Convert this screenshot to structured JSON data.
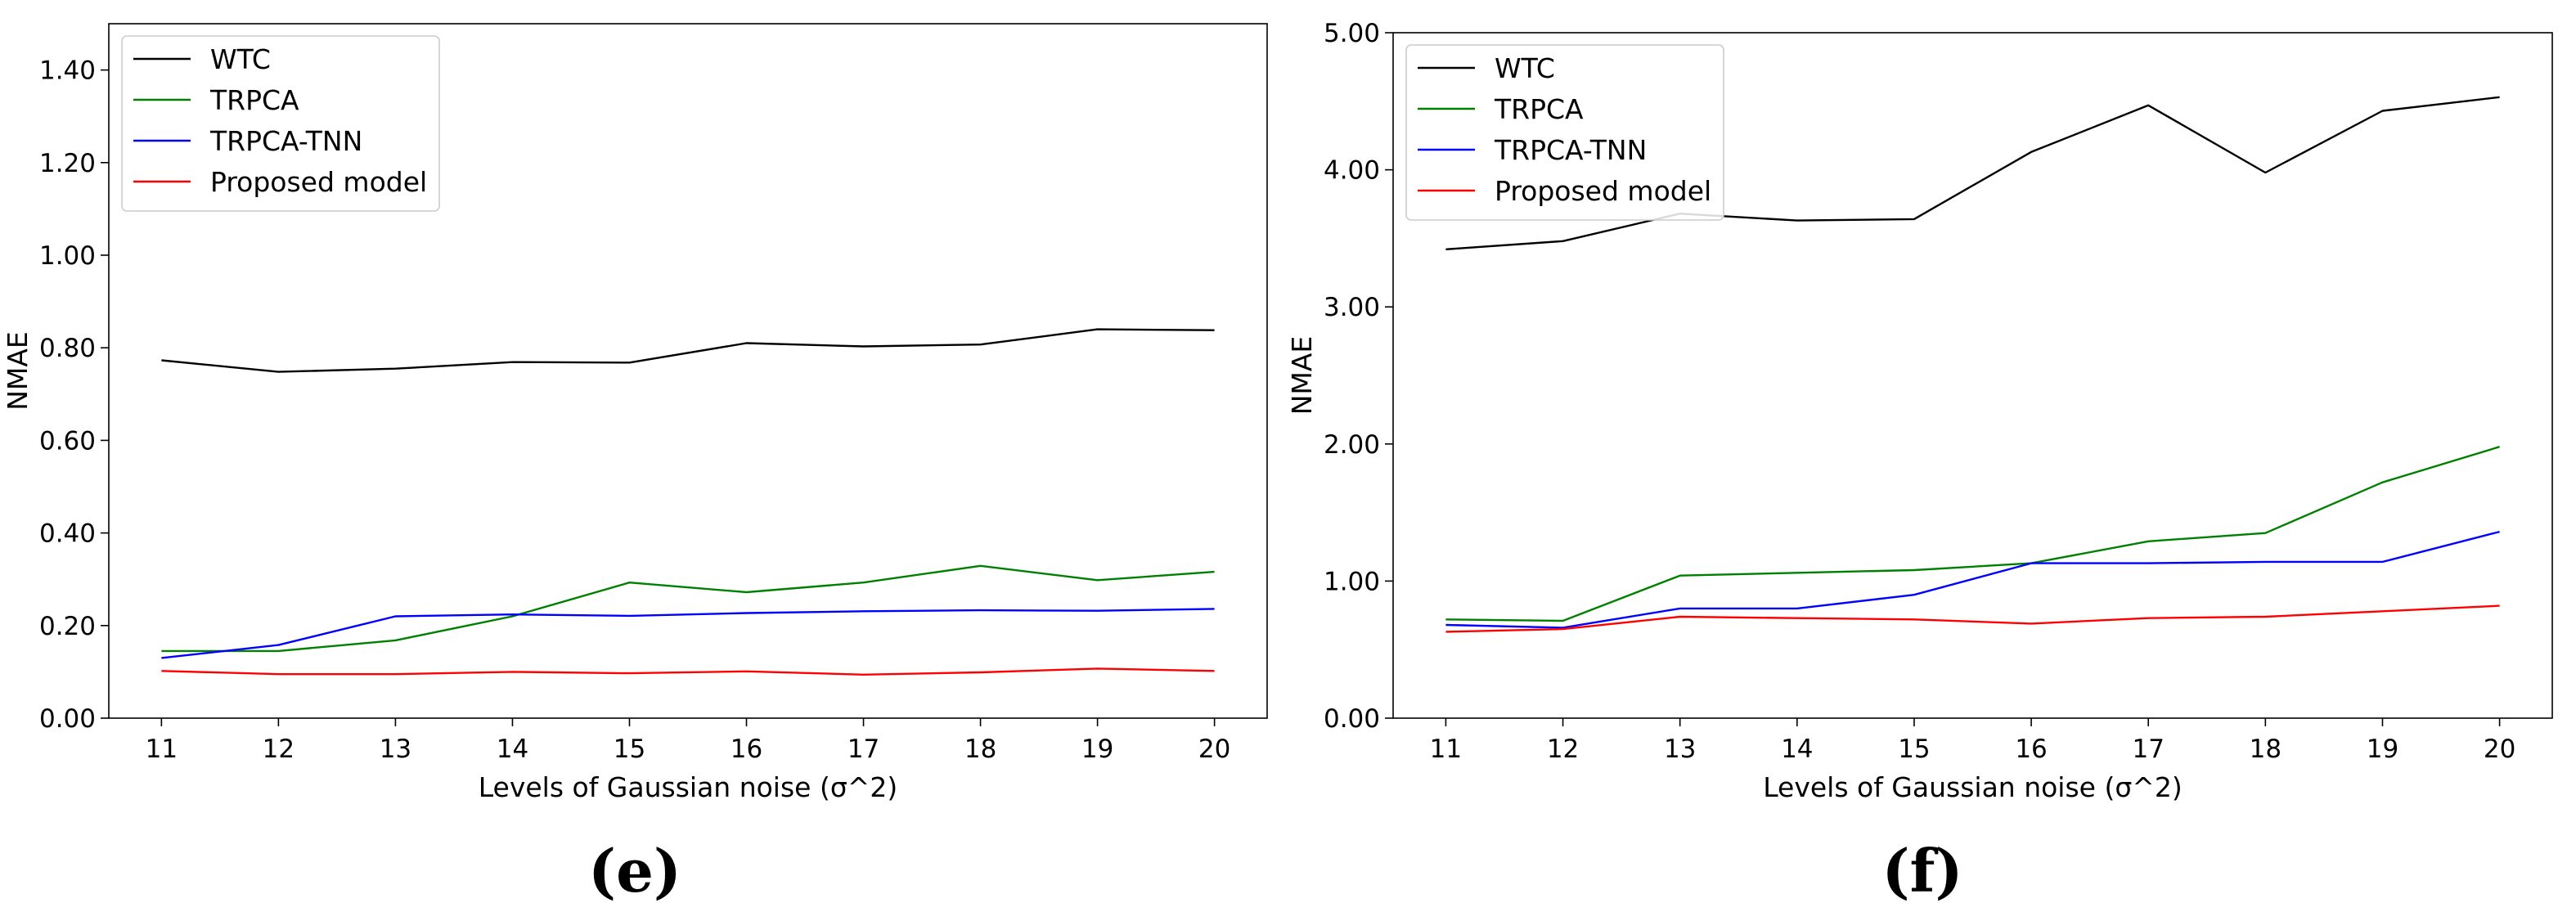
{
  "chart_data": [
    {
      "type": "line",
      "panel_label": "(e)",
      "xlabel": "Levels of Gaussian noise (σ^2)",
      "ylabel": "NMAE",
      "x": [
        11,
        12,
        13,
        14,
        15,
        16,
        17,
        18,
        19,
        20
      ],
      "xlim": [
        10.55,
        20.45
      ],
      "ylim": [
        0,
        1.5
      ],
      "yticks": [
        0,
        0.2,
        0.4,
        0.6,
        0.8,
        1.0,
        1.2,
        1.4
      ],
      "ytick_labels": [
        "0.00",
        "0.20",
        "0.40",
        "0.60",
        "0.80",
        "1.00",
        "1.20",
        "1.40"
      ],
      "xtick_labels": [
        "11",
        "12",
        "13",
        "14",
        "15",
        "16",
        "17",
        "18",
        "19",
        "20"
      ],
      "grid": false,
      "legend_position": "top-left",
      "series": [
        {
          "name": "WTC",
          "color": "#000000",
          "values": [
            0.773,
            0.748,
            0.755,
            0.769,
            0.768,
            0.81,
            0.803,
            0.807,
            0.84,
            0.838
          ]
        },
        {
          "name": "TRPCA",
          "color": "#008000",
          "values": [
            0.145,
            0.145,
            0.168,
            0.22,
            0.293,
            0.272,
            0.293,
            0.329,
            0.298,
            0.316
          ]
        },
        {
          "name": "TRPCA-TNN",
          "color": "#0000ff",
          "values": [
            0.13,
            0.158,
            0.22,
            0.224,
            0.221,
            0.227,
            0.231,
            0.233,
            0.232,
            0.236
          ]
        },
        {
          "name": "Proposed model",
          "color": "#ff0000",
          "values": [
            0.102,
            0.095,
            0.095,
            0.1,
            0.097,
            0.101,
            0.094,
            0.099,
            0.107,
            0.102
          ]
        }
      ]
    },
    {
      "type": "line",
      "panel_label": "(f)",
      "xlabel": "Levels of Gaussian noise (σ^2)",
      "ylabel": "NMAE",
      "x": [
        11,
        12,
        13,
        14,
        15,
        16,
        17,
        18,
        19,
        20
      ],
      "xlim": [
        10.55,
        20.45
      ],
      "ylim": [
        0,
        5
      ],
      "yticks": [
        0,
        1,
        2,
        3,
        4,
        5
      ],
      "ytick_labels": [
        "0.00",
        "1.00",
        "2.00",
        "3.00",
        "4.00",
        "5.00"
      ],
      "xtick_labels": [
        "11",
        "12",
        "13",
        "14",
        "15",
        "16",
        "17",
        "18",
        "19",
        "20"
      ],
      "grid": false,
      "legend_position": "top-left",
      "series": [
        {
          "name": "WTC",
          "color": "#000000",
          "values": [
            3.42,
            3.48,
            3.68,
            3.63,
            3.64,
            4.13,
            4.47,
            3.98,
            4.43,
            4.53
          ]
        },
        {
          "name": "TRPCA",
          "color": "#008000",
          "values": [
            0.72,
            0.71,
            1.04,
            1.06,
            1.08,
            1.13,
            1.29,
            1.35,
            1.72,
            1.98
          ]
        },
        {
          "name": "TRPCA-TNN",
          "color": "#0000ff",
          "values": [
            0.68,
            0.66,
            0.8,
            0.8,
            0.9,
            1.13,
            1.13,
            1.14,
            1.14,
            1.36
          ]
        },
        {
          "name": "Proposed model",
          "color": "#ff0000",
          "values": [
            0.63,
            0.65,
            0.74,
            0.73,
            0.72,
            0.69,
            0.73,
            0.74,
            0.78,
            0.82
          ]
        }
      ]
    }
  ]
}
